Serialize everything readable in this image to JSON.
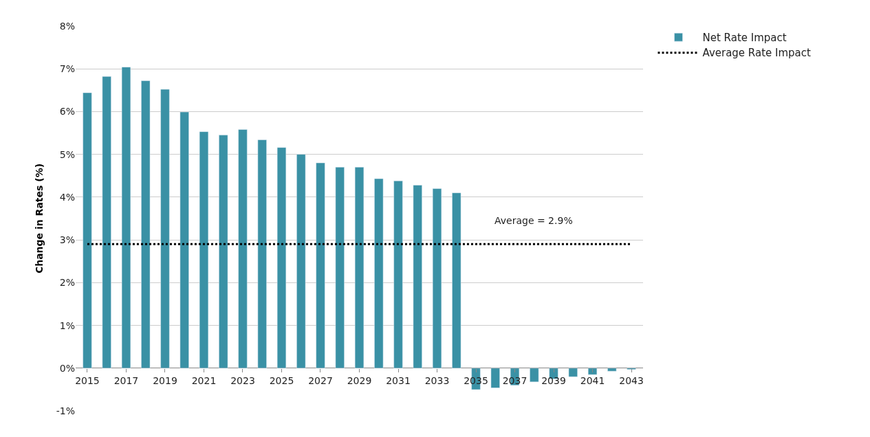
{
  "chart_data": {
    "type": "bar",
    "ylabel": "Change in Rates (%)",
    "categories": [
      "2015",
      null,
      "2017",
      null,
      "2019",
      null,
      "2021",
      null,
      "2023",
      null,
      "2025",
      null,
      "2027",
      null,
      "2029",
      null,
      "2031",
      null,
      "2033",
      null,
      "2035",
      null,
      "2037",
      null,
      "2039",
      null,
      "2041",
      null,
      "2043"
    ],
    "series": [
      {
        "name": "Net Rate Impact",
        "color": "#3a91a5",
        "values": [
          6.44,
          6.82,
          7.04,
          6.72,
          6.52,
          5.99,
          5.53,
          5.45,
          5.58,
          5.34,
          5.16,
          5.0,
          4.8,
          4.7,
          4.7,
          4.43,
          4.38,
          4.28,
          4.2,
          4.1,
          -0.5,
          -0.46,
          -0.4,
          -0.32,
          -0.25,
          -0.2,
          -0.15,
          -0.07,
          -0.03
        ]
      },
      {
        "name": "Average Rate Impact",
        "type": "line",
        "line_style": "dotted",
        "color": "#000000",
        "values": [
          2.9,
          2.9,
          2.9,
          2.9,
          2.9,
          2.9,
          2.9,
          2.9,
          2.9,
          2.9,
          2.9,
          2.9,
          2.9,
          2.9,
          2.9,
          2.9,
          2.9,
          2.9,
          2.9,
          2.9,
          2.9,
          2.9,
          2.9,
          2.9,
          2.9,
          2.9,
          2.9,
          2.9,
          2.9
        ]
      }
    ],
    "annotations": [
      "Average = 2.9%"
    ],
    "ylim": [
      -1,
      8
    ],
    "yticks": [
      {
        "value": -1,
        "label": "-1%"
      },
      {
        "value": 0,
        "label": "0%"
      },
      {
        "value": 1,
        "label": "1%"
      },
      {
        "value": 2,
        "label": "2%"
      },
      {
        "value": 3,
        "label": "3%"
      },
      {
        "value": 4,
        "label": "4%"
      },
      {
        "value": 5,
        "label": "5%"
      },
      {
        "value": 6,
        "label": "6%"
      },
      {
        "value": 7,
        "label": "7%"
      },
      {
        "value": 8,
        "label": "8%"
      }
    ],
    "grid": "y",
    "legend": "top right"
  }
}
